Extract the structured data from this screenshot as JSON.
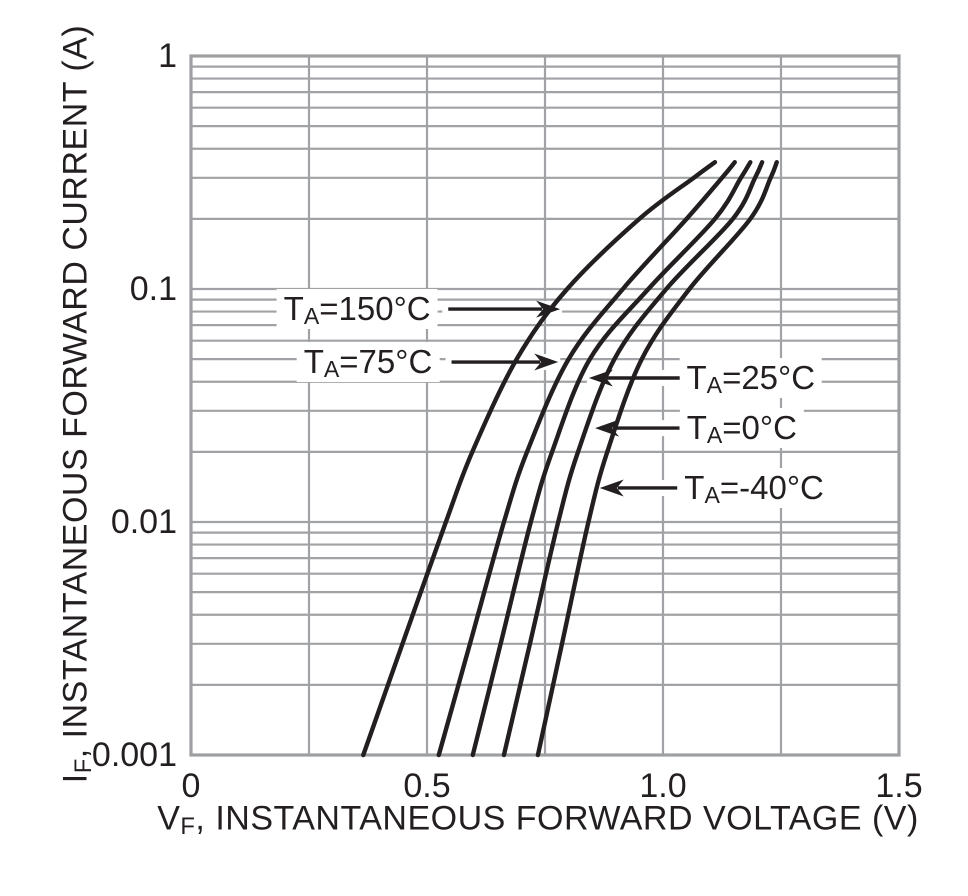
{
  "chart_data": {
    "type": "line",
    "title": "",
    "background": "#ffffff",
    "colors": {
      "curve": "#231f20",
      "grid": "#a0a2a5",
      "frame": "#9d9fa2",
      "text": "#231f20"
    },
    "x_axis": {
      "label_parts": {
        "pre": "V",
        "sub": "F",
        "post": ", INSTANTANEOUS FORWARD VOLTAGE (V)"
      },
      "scale": "linear",
      "min": 0,
      "max": 1.5,
      "major_ticks": [
        0,
        0.5,
        1.0,
        1.5
      ],
      "tick_labels": [
        "0",
        "0.5",
        "1.0",
        "1.5"
      ],
      "minor_step": 0.25,
      "grid": true
    },
    "y_axis": {
      "label_parts": {
        "pre": "I",
        "sub": "F",
        "post": ", INSTANTANEOUS FORWARD CURRENT (A)"
      },
      "scale": "log",
      "min": 0.001,
      "max": 1,
      "major_ticks": [
        1,
        0.1,
        0.01,
        0.001
      ],
      "tick_labels": [
        "1",
        "0.1",
        "0.01",
        "0.001"
      ],
      "minor_grid": "log-decades",
      "grid": true
    },
    "series": [
      {
        "name": "TA=150°C",
        "temperature_c": 150,
        "points_v_a": [
          [
            0.365,
            0.001
          ],
          [
            0.448,
            0.003
          ],
          [
            0.54,
            0.01
          ],
          [
            0.596,
            0.02
          ],
          [
            0.69,
            0.05
          ],
          [
            0.797,
            0.1
          ],
          [
            0.95,
            0.2
          ],
          [
            1.065,
            0.3
          ],
          [
            1.11,
            0.35
          ]
        ]
      },
      {
        "name": "TA=75°C",
        "temperature_c": 75,
        "points_v_a": [
          [
            0.525,
            0.001
          ],
          [
            0.591,
            0.003
          ],
          [
            0.663,
            0.01
          ],
          [
            0.712,
            0.02
          ],
          [
            0.8,
            0.05
          ],
          [
            0.915,
            0.1
          ],
          [
            1.05,
            0.2
          ],
          [
            1.125,
            0.3
          ],
          [
            1.152,
            0.35
          ]
        ]
      },
      {
        "name": "TA=25°C",
        "temperature_c": 25,
        "points_v_a": [
          [
            0.597,
            0.001
          ],
          [
            0.656,
            0.003
          ],
          [
            0.72,
            0.01
          ],
          [
            0.765,
            0.02
          ],
          [
            0.845,
            0.05
          ],
          [
            0.969,
            0.1
          ],
          [
            1.11,
            0.2
          ],
          [
            1.165,
            0.3
          ],
          [
            1.185,
            0.35
          ]
        ]
      },
      {
        "name": "TA=0°C",
        "temperature_c": 0,
        "points_v_a": [
          [
            0.663,
            0.001
          ],
          [
            0.718,
            0.003
          ],
          [
            0.778,
            0.01
          ],
          [
            0.82,
            0.02
          ],
          [
            0.897,
            0.05
          ],
          [
            1.007,
            0.1
          ],
          [
            1.148,
            0.2
          ],
          [
            1.195,
            0.3
          ],
          [
            1.21,
            0.35
          ]
        ]
      },
      {
        "name": "TA=-40°C",
        "temperature_c": -40,
        "points_v_a": [
          [
            0.735,
            0.001
          ],
          [
            0.786,
            0.003
          ],
          [
            0.842,
            0.01
          ],
          [
            0.882,
            0.02
          ],
          [
            0.955,
            0.05
          ],
          [
            1.056,
            0.1
          ],
          [
            1.185,
            0.2
          ],
          [
            1.228,
            0.3
          ],
          [
            1.241,
            0.35
          ]
        ]
      }
    ],
    "annotations": [
      {
        "pre": "T",
        "sub": "A",
        "text": "=150°C",
        "slug": "150c",
        "direction": "right",
        "label_v": 0.352,
        "label_i": 0.082,
        "arrow_from_v": 0.545,
        "arrow_to_v": 0.782,
        "arrow_i": 0.082
      },
      {
        "pre": "T",
        "sub": "A",
        "text": "=75°C",
        "slug": "75c",
        "direction": "right",
        "label_v": 0.375,
        "label_i": 0.0486,
        "arrow_from_v": 0.552,
        "arrow_to_v": 0.778,
        "arrow_i": 0.0486
      },
      {
        "pre": "T",
        "sub": "A",
        "text": "=25°C",
        "slug": "25c",
        "direction": "left",
        "label_v": 1.186,
        "label_i": 0.0415,
        "arrow_from_v": 1.044,
        "arrow_to_v": 0.843,
        "arrow_i": 0.0415
      },
      {
        "pre": "T",
        "sub": "A",
        "text": "=0°C",
        "slug": "0c",
        "direction": "left",
        "label_v": 1.167,
        "label_i": 0.0253,
        "arrow_from_v": 1.035,
        "arrow_to_v": 0.856,
        "arrow_i": 0.0253
      },
      {
        "pre": "T",
        "sub": "A",
        "text": "=-40°C",
        "slug": "minus40c",
        "direction": "left",
        "label_v": 1.193,
        "label_i": 0.014,
        "arrow_from_v": 1.036,
        "arrow_to_v": 0.866,
        "arrow_i": 0.014
      }
    ]
  }
}
